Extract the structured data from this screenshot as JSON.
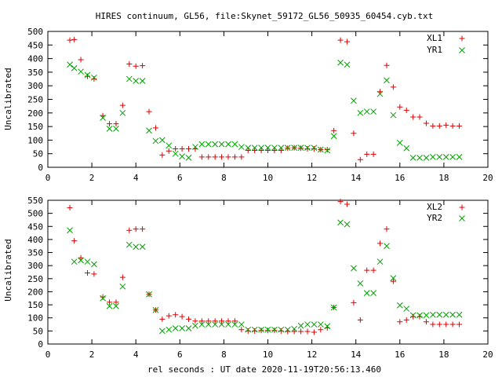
{
  "title": "HIRES continuum, GL56, file:Skynet_59172_GL56_50935_60454.cyb.txt",
  "xlabel": "rel seconds : UT date 2020-11-19T20:56:13.460",
  "colors": {
    "red": "#e00000",
    "green": "#00a000"
  },
  "chart_data": [
    {
      "type": "scatter",
      "ylabel": "Uncalibrated",
      "xlim": [
        0,
        20
      ],
      "ylim": [
        0,
        500
      ],
      "xticks": [
        0,
        2,
        4,
        6,
        8,
        10,
        12,
        14,
        16,
        18,
        20
      ],
      "yticks": [
        0,
        50,
        100,
        150,
        200,
        250,
        300,
        350,
        400,
        450,
        500
      ],
      "legend_position": "top-right",
      "x": [
        1.0,
        1.2,
        1.5,
        1.8,
        2.1,
        2.5,
        2.8,
        3.1,
        3.4,
        3.7,
        4.0,
        4.3,
        4.6,
        4.9,
        5.2,
        5.5,
        5.8,
        6.1,
        6.4,
        6.7,
        7.0,
        7.3,
        7.6,
        7.9,
        8.2,
        8.5,
        8.8,
        9.1,
        9.4,
        9.7,
        10.0,
        10.3,
        10.6,
        10.9,
        11.2,
        11.5,
        11.8,
        12.1,
        12.4,
        12.7,
        13.0,
        13.3,
        13.6,
        13.9,
        14.2,
        14.5,
        14.8,
        15.1,
        15.4,
        15.7,
        16.0,
        16.3,
        16.6,
        16.9,
        17.2,
        17.5,
        17.8,
        18.1,
        18.4,
        18.7
      ],
      "series": [
        {
          "name": "XL1",
          "color": "#e00000",
          "marker": "plus",
          "values": [
            468,
            470,
            396,
            335,
            325,
            190,
            160,
            160,
            228,
            380,
            372,
            374,
            205,
            145,
            45,
            60,
            68,
            68,
            68,
            68,
            38,
            38,
            38,
            38,
            38,
            38,
            38,
            62,
            62,
            62,
            62,
            62,
            62,
            70,
            72,
            70,
            68,
            68,
            65,
            65,
            135,
            468,
            462,
            125,
            28,
            48,
            48,
            278,
            375,
            295,
            222,
            210,
            185,
            185,
            162,
            152,
            152,
            155,
            152,
            152
          ]
        },
        {
          "name": "YR1",
          "color": "#00a000",
          "marker": "cross",
          "values": [
            378,
            365,
            352,
            340,
            330,
            182,
            142,
            142,
            200,
            325,
            318,
            318,
            135,
            97,
            100,
            80,
            50,
            40,
            35,
            75,
            85,
            85,
            85,
            85,
            85,
            85,
            75,
            72,
            72,
            72,
            72,
            72,
            72,
            72,
            72,
            72,
            72,
            72,
            65,
            62,
            115,
            385,
            378,
            245,
            200,
            205,
            205,
            270,
            320,
            192,
            90,
            70,
            35,
            35,
            35,
            38,
            38,
            38,
            38,
            38
          ]
        }
      ]
    },
    {
      "type": "scatter",
      "ylabel": "Uncalibrated",
      "xlim": [
        0,
        20
      ],
      "ylim": [
        0,
        550
      ],
      "xticks": [
        0,
        2,
        4,
        6,
        8,
        10,
        12,
        14,
        16,
        18,
        20
      ],
      "yticks": [
        0,
        50,
        100,
        150,
        200,
        250,
        300,
        350,
        400,
        450,
        500,
        550
      ],
      "legend_position": "top-right",
      "x": [
        1.0,
        1.2,
        1.5,
        1.8,
        2.1,
        2.5,
        2.8,
        3.1,
        3.4,
        3.7,
        4.0,
        4.3,
        4.6,
        4.9,
        5.2,
        5.5,
        5.8,
        6.1,
        6.4,
        6.7,
        7.0,
        7.3,
        7.6,
        7.9,
        8.2,
        8.5,
        8.8,
        9.1,
        9.4,
        9.7,
        10.0,
        10.3,
        10.6,
        10.9,
        11.2,
        11.5,
        11.8,
        12.1,
        12.4,
        12.7,
        13.0,
        13.3,
        13.6,
        13.9,
        14.2,
        14.5,
        14.8,
        15.1,
        15.4,
        15.7,
        16.0,
        16.3,
        16.6,
        16.9,
        17.2,
        17.5,
        17.8,
        18.1,
        18.4,
        18.7
      ],
      "series": [
        {
          "name": "XL2",
          "color": "#e00000",
          "marker": "plus",
          "values": [
            522,
            395,
            330,
            272,
            268,
            180,
            160,
            160,
            255,
            435,
            440,
            440,
            190,
            130,
            95,
            108,
            112,
            105,
            95,
            88,
            88,
            88,
            88,
            88,
            88,
            88,
            55,
            50,
            50,
            52,
            52,
            52,
            50,
            48,
            48,
            48,
            48,
            45,
            55,
            62,
            140,
            545,
            535,
            158,
            92,
            282,
            282,
            385,
            440,
            240,
            85,
            92,
            105,
            105,
            85,
            75,
            75,
            75,
            75,
            75
          ]
        },
        {
          "name": "YR2",
          "color": "#00a000",
          "marker": "cross",
          "values": [
            435,
            315,
            320,
            315,
            305,
            175,
            145,
            145,
            220,
            380,
            372,
            372,
            190,
            130,
            50,
            55,
            60,
            60,
            60,
            70,
            75,
            75,
            75,
            75,
            75,
            75,
            75,
            55,
            55,
            55,
            55,
            55,
            55,
            55,
            58,
            70,
            75,
            75,
            75,
            68,
            140,
            465,
            458,
            290,
            232,
            195,
            195,
            315,
            375,
            252,
            148,
            135,
            110,
            110,
            110,
            112,
            112,
            112,
            112,
            112
          ]
        }
      ]
    }
  ]
}
